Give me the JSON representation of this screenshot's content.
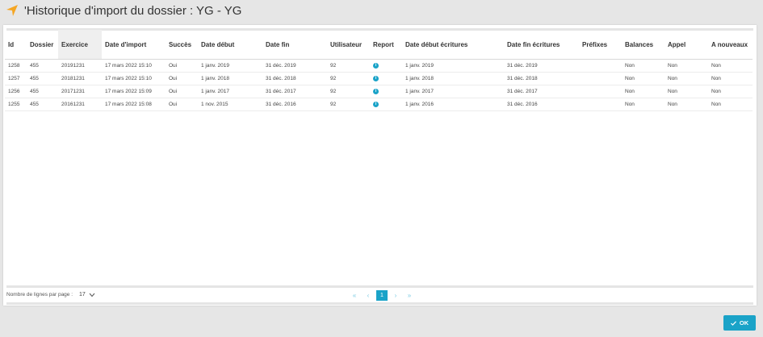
{
  "header": {
    "title": "'Historique d'import du dossier : YG - YG",
    "icon": "navigation-arrow-icon",
    "accent_color": "#f5a623"
  },
  "table": {
    "columns": [
      "Id",
      "Dossier",
      "Exercice",
      "Date d'import",
      "Succès",
      "Date début",
      "Date fin",
      "Utilisateur",
      "Report",
      "Date début écritures",
      "Date fin écritures",
      "Préfixes",
      "Balances",
      "Appel",
      "A nouveaux"
    ],
    "sorted_column": "Exercice",
    "rows": [
      [
        "1258",
        "455",
        "20191231",
        "17 mars 2022 15:10",
        "Oui",
        "1 janv. 2019",
        "31 déc. 2019",
        "92",
        "",
        "1 janv. 2019",
        "31 déc. 2019",
        "",
        "Non",
        "Non",
        "Non"
      ],
      [
        "1257",
        "455",
        "20181231",
        "17 mars 2022 15:10",
        "Oui",
        "1 janv. 2018",
        "31 déc. 2018",
        "92",
        "",
        "1 janv. 2018",
        "31 déc. 2018",
        "",
        "Non",
        "Non",
        "Non"
      ],
      [
        "1256",
        "455",
        "20171231",
        "17 mars 2022 15:09",
        "Oui",
        "1 janv. 2017",
        "31 déc. 2017",
        "92",
        "",
        "1 janv. 2017",
        "31 déc. 2017",
        "",
        "Non",
        "Non",
        "Non"
      ],
      [
        "1255",
        "455",
        "20161231",
        "17 mars 2022 15:08",
        "Oui",
        "1 nov. 2015",
        "31 déc. 2016",
        "92",
        "",
        "1 janv. 2016",
        "31 déc. 2016",
        "",
        "Non",
        "Non",
        "Non"
      ]
    ],
    "report_icon": "info-icon",
    "report_icon_glyph": "i"
  },
  "footer": {
    "rows_per_page_label": "Nombre de lignes par page :",
    "rows_per_page_value": "17",
    "pagination": {
      "first": "«",
      "prev": "‹",
      "current_page": "1",
      "next": "›",
      "last": "»"
    }
  },
  "actions": {
    "ok_label": "OK",
    "ok_icon": "check-icon",
    "primary_color": "#1aa3c8"
  }
}
